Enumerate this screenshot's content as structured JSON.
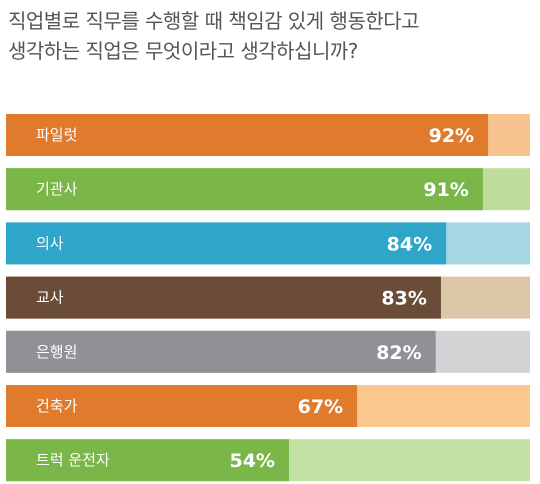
{
  "chart_data": {
    "type": "bar",
    "orientation": "horizontal",
    "title_lines": [
      "직업별로 직무를 수행할 때 책임감 있게 행동한다고",
      "생각하는 직업은 무엇이라고 생각하십니까?"
    ],
    "categories": [
      "파일럿",
      "기관사",
      "의사",
      "교사",
      "은행원",
      "건축가",
      "트럭 운전자"
    ],
    "values": [
      92,
      91,
      84,
      83,
      82,
      67,
      54
    ],
    "value_labels": [
      "92%",
      "91%",
      "84%",
      "83%",
      "82%",
      "67%",
      "54%"
    ],
    "xlim": [
      0,
      100
    ],
    "unit": "%",
    "colors": [
      {
        "fill": "#e07b2e",
        "track": "#f7c48f"
      },
      {
        "fill": "#7ab648",
        "track": "#bedd9b"
      },
      {
        "fill": "#2ea5c9",
        "track": "#a6d6e2"
      },
      {
        "fill": "#6b4c38",
        "track": "#dcc6a8"
      },
      {
        "fill": "#8f9194",
        "track": "#d2d3d5"
      },
      {
        "fill": "#e07b2e",
        "track": "#fcc78c"
      },
      {
        "fill": "#7ab648",
        "track": "#c3e1a2"
      }
    ],
    "grid": false,
    "legend": "none"
  }
}
